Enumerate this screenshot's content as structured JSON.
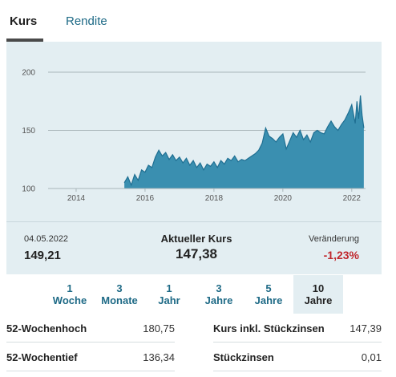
{
  "tabs": [
    {
      "label": "Kurs",
      "active": true
    },
    {
      "label": "Rendite",
      "active": false
    }
  ],
  "chart_data": {
    "type": "area",
    "color": "#3a8fb0",
    "ylim": [
      100,
      200
    ],
    "yticks": [
      100,
      150,
      200
    ],
    "xticks": [
      "2014",
      "2016",
      "2018",
      "2020",
      "2022"
    ],
    "x": [
      2015.4,
      2015.5,
      2015.6,
      2015.7,
      2015.8,
      2015.9,
      2016.0,
      2016.1,
      2016.2,
      2016.3,
      2016.4,
      2016.5,
      2016.6,
      2016.7,
      2016.8,
      2016.9,
      2017.0,
      2017.1,
      2017.2,
      2017.3,
      2017.4,
      2017.5,
      2017.6,
      2017.7,
      2017.8,
      2017.9,
      2018.0,
      2018.1,
      2018.2,
      2018.3,
      2018.4,
      2018.5,
      2018.6,
      2018.7,
      2018.8,
      2018.9,
      2019.0,
      2019.1,
      2019.2,
      2019.3,
      2019.4,
      2019.5,
      2019.6,
      2019.7,
      2019.8,
      2019.9,
      2020.0,
      2020.1,
      2020.2,
      2020.3,
      2020.4,
      2020.5,
      2020.6,
      2020.7,
      2020.8,
      2020.9,
      2021.0,
      2021.1,
      2021.2,
      2021.3,
      2021.4,
      2021.5,
      2021.6,
      2021.7,
      2021.8,
      2021.9,
      2022.0,
      2022.1,
      2022.15,
      2022.2,
      2022.25,
      2022.3,
      2022.35
    ],
    "y": [
      105,
      110,
      103,
      112,
      107,
      116,
      114,
      120,
      118,
      127,
      133,
      128,
      131,
      125,
      129,
      124,
      127,
      122,
      126,
      120,
      124,
      118,
      122,
      116,
      121,
      119,
      123,
      118,
      124,
      121,
      126,
      124,
      128,
      123,
      125,
      124,
      126,
      128,
      130,
      133,
      139,
      152,
      145,
      143,
      140,
      144,
      147,
      134,
      141,
      148,
      144,
      150,
      142,
      146,
      140,
      148,
      150,
      148,
      147,
      153,
      158,
      153,
      150,
      155,
      159,
      165,
      172,
      156,
      175,
      160,
      180,
      163,
      152
    ]
  },
  "info": {
    "date": "04.05.2022",
    "prev_value": "149,21",
    "current_label": "Aktueller Kurs",
    "current_value": "147,38",
    "change_label": "Veränderung",
    "change_value": "-1,23%",
    "change_color": "#c0272d"
  },
  "periods": [
    {
      "line1": "1",
      "line2": "Woche",
      "active": false
    },
    {
      "line1": "3",
      "line2": "Monate",
      "active": false
    },
    {
      "line1": "1",
      "line2": "Jahr",
      "active": false
    },
    {
      "line1": "3",
      "line2": "Jahre",
      "active": false
    },
    {
      "line1": "5",
      "line2": "Jahre",
      "active": false
    },
    {
      "line1": "10",
      "line2": "Jahre",
      "active": true
    }
  ],
  "stats": {
    "left": [
      {
        "label": "52-Wochenhoch",
        "value": "180,75"
      },
      {
        "label": "52-Wochentief",
        "value": "136,34"
      }
    ],
    "right": [
      {
        "label": "Kurs inkl. Stückzinsen",
        "value": "147,39"
      },
      {
        "label": "Stückzinsen",
        "value": "0,01"
      }
    ]
  }
}
